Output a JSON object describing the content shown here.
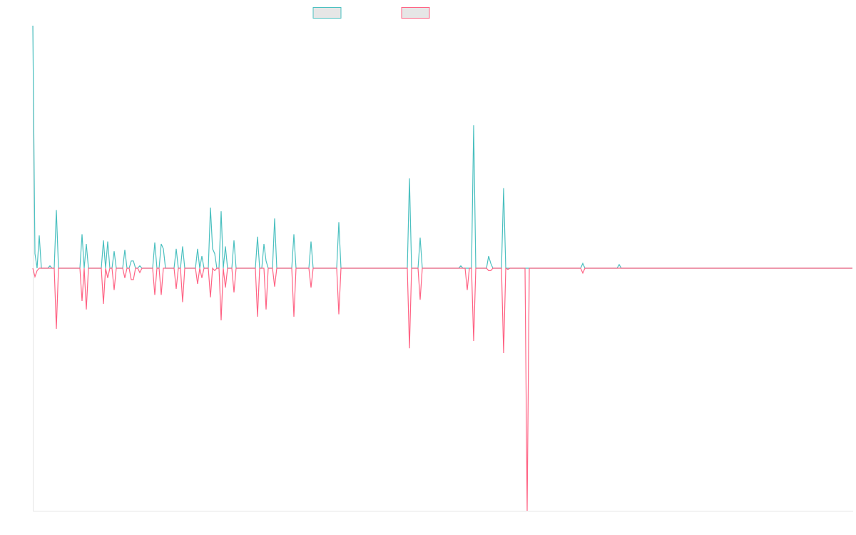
{
  "chart_data": {
    "type": "line",
    "legend": "top",
    "grid": false,
    "ylim": [
      -100,
      100
    ],
    "series": [
      {
        "color": "#4bc0c0",
        "values": [
          100,
          6,
          0,
          13.5,
          0,
          0,
          0,
          0,
          1,
          0,
          0,
          24,
          0,
          0,
          0,
          0,
          0,
          0,
          0,
          0,
          0,
          0,
          0,
          14,
          0,
          10,
          0,
          0,
          0,
          0,
          0,
          0,
          0,
          11.5,
          0,
          11,
          0,
          0,
          7,
          0,
          0,
          0,
          0,
          7.6,
          0,
          0,
          3,
          3,
          0,
          0,
          1,
          0,
          0,
          0,
          0,
          0,
          0,
          10.6,
          0,
          0,
          10,
          8,
          0,
          0,
          0,
          0,
          0,
          8,
          0,
          0,
          9,
          0,
          0,
          0,
          0,
          0,
          0,
          8,
          0,
          5,
          0,
          0,
          0,
          25,
          8,
          6,
          0,
          0,
          23.5,
          0,
          9,
          0,
          0,
          0,
          11.5,
          0,
          0,
          0,
          0,
          0,
          0,
          0,
          0,
          0,
          0,
          13,
          0,
          0,
          10,
          3,
          0,
          0,
          0,
          20.5,
          0,
          0,
          0,
          0,
          0,
          0,
          0,
          0,
          14,
          0,
          0,
          0,
          0,
          0,
          0,
          0,
          11,
          0,
          0,
          0,
          0,
          0,
          0,
          0,
          0,
          0,
          0,
          0,
          0,
          19,
          0,
          0,
          0,
          0,
          0,
          0,
          0,
          0,
          0,
          0,
          0,
          0,
          0,
          0,
          0,
          0,
          0,
          0,
          0,
          0,
          0,
          0,
          0,
          0,
          0,
          0,
          0,
          0,
          0,
          0,
          0,
          0,
          37,
          0,
          0,
          0,
          0,
          12.6,
          0,
          0,
          0,
          0,
          0,
          0,
          0,
          0,
          0,
          0,
          0,
          0,
          0,
          0,
          0,
          0,
          0,
          0,
          1,
          0,
          0,
          0,
          0,
          0,
          59,
          0,
          0,
          0,
          0,
          0,
          0,
          5,
          2,
          0,
          0,
          0,
          0,
          0,
          33,
          0,
          0,
          0,
          0,
          0,
          0,
          0,
          0,
          0,
          0,
          0,
          0,
          0,
          0,
          0,
          0,
          0,
          0,
          0,
          0,
          0,
          0,
          0,
          0,
          0,
          0,
          0,
          0,
          0,
          0,
          0,
          0,
          0,
          0,
          0,
          0,
          2,
          0,
          0,
          0,
          0,
          0,
          0,
          0,
          0,
          0,
          0,
          0,
          0,
          0,
          0,
          0,
          0,
          1.5,
          0,
          0,
          0,
          0,
          0,
          0,
          0,
          0,
          0,
          0,
          0,
          0,
          0,
          0,
          0,
          0,
          0,
          0,
          0,
          0,
          0,
          0,
          0,
          0,
          0,
          0,
          0,
          0,
          0,
          0,
          0,
          0,
          0,
          0,
          0,
          0,
          0,
          0,
          0,
          0,
          0,
          0,
          0,
          0,
          0,
          0,
          0,
          0,
          0,
          0,
          0,
          0,
          0,
          0,
          0,
          0,
          0,
          0,
          0,
          0,
          0,
          0,
          0,
          0,
          0,
          0,
          0,
          0,
          0,
          0,
          0,
          0,
          0,
          0,
          0,
          0,
          0,
          0,
          0,
          0,
          0,
          0,
          0,
          0,
          0,
          0,
          0,
          0,
          0,
          0,
          0,
          0,
          0,
          0,
          0,
          0,
          0,
          0,
          0,
          0,
          0,
          0,
          0,
          0,
          0,
          0,
          0,
          0,
          0
        ]
      },
      {
        "color": "#ff6384",
        "values": [
          0,
          -3.5,
          -1,
          0,
          0,
          0,
          0,
          0,
          0,
          0,
          0,
          -25,
          0,
          0,
          0,
          0,
          0,
          0,
          0,
          0,
          0,
          0,
          0,
          -13.5,
          0,
          -17,
          0,
          0,
          0,
          0,
          0,
          0,
          0,
          -14.7,
          0,
          -4,
          0,
          0,
          -9,
          0,
          0,
          0,
          0,
          -4,
          0,
          0,
          -4.7,
          -4.7,
          0,
          0,
          -1.8,
          0,
          0,
          0,
          0,
          0,
          0,
          -11,
          0,
          0,
          -11,
          0,
          0,
          0,
          0,
          0,
          0,
          -8.5,
          0,
          0,
          -14,
          0,
          0,
          0,
          0,
          0,
          0,
          -6.5,
          0,
          -4,
          0,
          0,
          0,
          -12,
          0,
          -1,
          0,
          0,
          -21.5,
          0,
          -8,
          0,
          0,
          0,
          -10,
          0,
          0,
          0,
          0,
          0,
          0,
          0,
          0,
          0,
          0,
          -20,
          0,
          0,
          0,
          -17,
          0,
          0,
          0,
          -7.6,
          0,
          0,
          0,
          0,
          0,
          0,
          0,
          0,
          -20,
          0,
          0,
          0,
          0,
          0,
          0,
          0,
          -8,
          0,
          0,
          0,
          0,
          0,
          0,
          0,
          0,
          0,
          0,
          0,
          0,
          -19,
          0,
          0,
          0,
          0,
          0,
          0,
          0,
          0,
          0,
          0,
          0,
          0,
          0,
          0,
          0,
          0,
          0,
          0,
          0,
          0,
          0,
          0,
          0,
          0,
          0,
          0,
          0,
          0,
          0,
          0,
          0,
          0,
          -33,
          0,
          0,
          0,
          0,
          -13,
          0,
          0,
          0,
          0,
          0,
          0,
          0,
          0,
          0,
          0,
          0,
          0,
          0,
          0,
          0,
          0,
          0,
          0,
          0,
          0,
          0,
          -9,
          0,
          0,
          -30,
          0,
          0,
          0,
          0,
          0,
          0,
          -1,
          -1,
          0,
          0,
          0,
          0,
          0,
          -35,
          0,
          -0.5,
          0,
          0,
          0,
          0,
          0,
          0,
          0,
          0,
          -100,
          0,
          0,
          0,
          0,
          0,
          0,
          0,
          0,
          0,
          0,
          0,
          0,
          0,
          0,
          0,
          0,
          0,
          0,
          0,
          0,
          0,
          0,
          0,
          0,
          0,
          -2,
          0,
          0,
          0,
          0,
          0,
          0,
          0,
          0,
          0,
          0,
          0,
          0,
          0,
          0,
          0,
          0,
          0,
          0,
          0,
          0,
          0,
          0,
          0,
          0,
          0,
          0,
          0,
          0,
          0,
          0,
          0,
          0,
          0,
          0,
          0,
          0,
          0,
          0,
          0,
          0,
          0,
          0,
          0,
          0,
          0,
          0,
          0,
          0,
          0,
          0,
          0,
          0,
          0,
          0,
          0,
          0,
          0,
          0,
          0,
          0,
          0,
          0,
          0,
          0,
          0,
          0,
          0,
          0,
          0,
          0,
          0,
          0,
          0,
          0,
          0,
          0,
          0,
          0,
          0,
          0,
          0,
          0,
          0,
          0,
          0,
          0,
          0,
          0,
          0,
          0,
          0,
          0,
          0,
          0,
          0,
          0,
          0,
          0,
          0,
          0,
          0,
          0,
          0,
          0,
          0,
          0,
          0,
          0,
          0,
          0,
          0,
          0,
          0,
          0,
          0,
          0,
          0,
          0,
          0,
          0,
          0,
          0,
          0,
          0,
          0,
          0
        ]
      }
    ]
  }
}
